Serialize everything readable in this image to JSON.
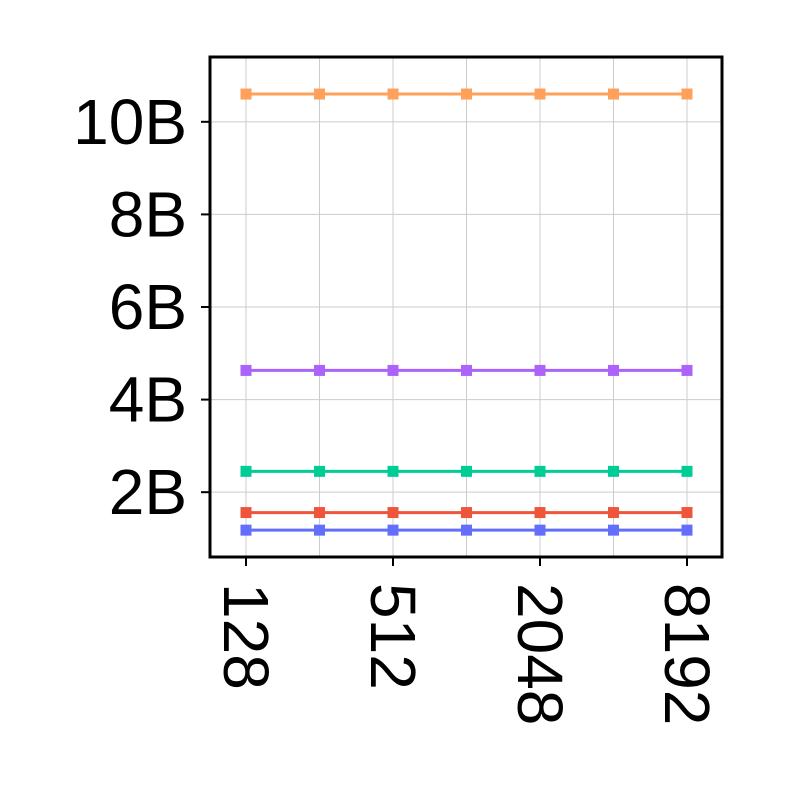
{
  "chart_data": {
    "type": "line",
    "title": "",
    "xlabel": "",
    "ylabel": "",
    "x_scale": "log2",
    "x": [
      128,
      256,
      512,
      1024,
      2048,
      4096,
      8192
    ],
    "x_ticks": [
      128,
      512,
      2048,
      8192
    ],
    "x_tick_labels": [
      "128",
      "512",
      "2048",
      "8192"
    ],
    "y_ticks": [
      2000000000,
      4000000000,
      6000000000,
      8000000000,
      10000000000
    ],
    "y_tick_labels": [
      "2B",
      "4B",
      "6B",
      "8B",
      "10B"
    ],
    "ylim": [
      600000000,
      11400000000
    ],
    "grid": true,
    "marker": "square",
    "series": [
      {
        "color": "#FFA15A",
        "values": [
          10600000000,
          10600000000,
          10600000000,
          10600000000,
          10600000000,
          10600000000,
          10600000000
        ]
      },
      {
        "color": "#AB63FA",
        "values": [
          4630000000,
          4630000000,
          4630000000,
          4630000000,
          4630000000,
          4630000000,
          4630000000
        ]
      },
      {
        "color": "#00CC96",
        "values": [
          2450000000,
          2450000000,
          2450000000,
          2450000000,
          2450000000,
          2450000000,
          2450000000
        ]
      },
      {
        "color": "#EF553B",
        "values": [
          1560000000,
          1560000000,
          1560000000,
          1560000000,
          1560000000,
          1560000000,
          1560000000
        ]
      },
      {
        "color": "#636EFA",
        "values": [
          1180000000,
          1180000000,
          1180000000,
          1180000000,
          1180000000,
          1180000000,
          1180000000
        ]
      }
    ]
  }
}
